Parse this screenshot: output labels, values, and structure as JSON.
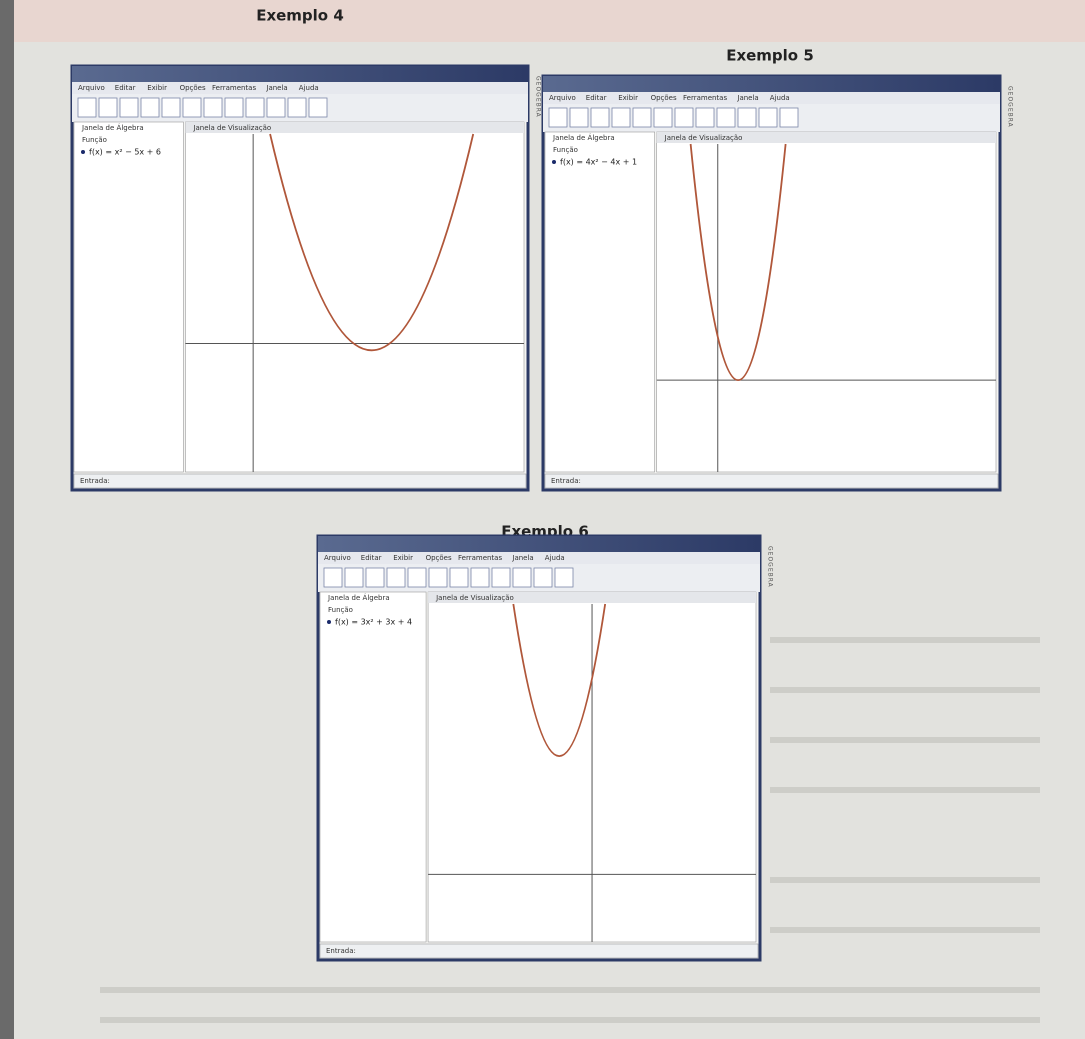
{
  "ui": {
    "side_label": "GEOGEBRA",
    "menu": [
      "Arquivo",
      "Editar",
      "Exibir",
      "Opções",
      "Ferramentas",
      "Janela",
      "Ajuda"
    ],
    "algebra_title": "Janela de Álgebra",
    "section": "Função",
    "view_title": "Janela de Visualização",
    "input_label": "Entrada:"
  },
  "examples": [
    {
      "heading": "Exemplo 4",
      "function": "f(x) = x² − 5x + 6"
    },
    {
      "heading": "Exemplo 5",
      "function": "f(x) = 4x² − 4x + 1"
    },
    {
      "heading": "Exemplo 6",
      "function": "f(x) = 3x² + 3x + 4"
    }
  ]
}
